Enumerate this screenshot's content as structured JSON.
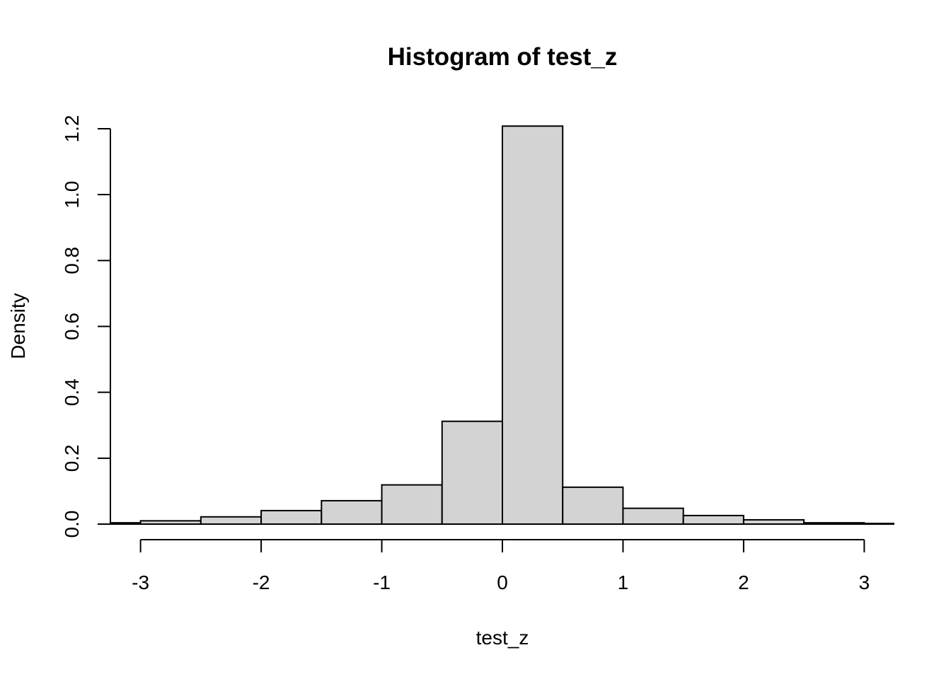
{
  "chart_data": {
    "type": "bar",
    "title": "Histogram of test_z",
    "xlabel": "test_z",
    "ylabel": "Density",
    "xlim": [
      -3.25,
      3.25
    ],
    "ylim": [
      0,
      1.2
    ],
    "x_ticks": [
      -3,
      -2,
      -1,
      0,
      1,
      2,
      3
    ],
    "x_tick_labels": [
      "-3",
      "-2",
      "-1",
      "0",
      "1",
      "2",
      "3"
    ],
    "y_ticks": [
      0,
      0.2,
      0.4,
      0.6,
      0.8,
      1.0,
      1.2
    ],
    "y_tick_labels": [
      "0.0",
      "0.2",
      "0.4",
      "0.6",
      "0.8",
      "1.0",
      "1.2"
    ],
    "bar_fill": "#d3d3d3",
    "bins": [
      {
        "start": -3.5,
        "end": -3.0,
        "density": 0.004
      },
      {
        "start": -3.0,
        "end": -2.5,
        "density": 0.01
      },
      {
        "start": -2.5,
        "end": -2.0,
        "density": 0.022
      },
      {
        "start": -2.0,
        "end": -1.5,
        "density": 0.041
      },
      {
        "start": -1.5,
        "end": -1.0,
        "density": 0.071
      },
      {
        "start": -1.0,
        "end": -0.5,
        "density": 0.119
      },
      {
        "start": -0.5,
        "end": 0.0,
        "density": 0.312
      },
      {
        "start": 0.0,
        "end": 0.5,
        "density": 1.208
      },
      {
        "start": 0.5,
        "end": 1.0,
        "density": 0.112
      },
      {
        "start": 1.0,
        "end": 1.5,
        "density": 0.048
      },
      {
        "start": 1.5,
        "end": 2.0,
        "density": 0.026
      },
      {
        "start": 2.0,
        "end": 2.5,
        "density": 0.013
      },
      {
        "start": 2.5,
        "end": 3.0,
        "density": 0.004
      },
      {
        "start": 3.0,
        "end": 3.5,
        "density": 0.002
      }
    ]
  }
}
